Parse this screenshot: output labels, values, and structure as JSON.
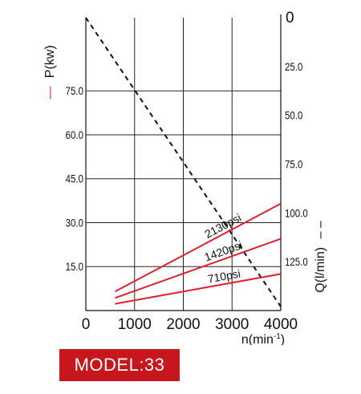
{
  "chart_data": {
    "type": "line",
    "x_axis": {
      "label": "n(min",
      "label_superscript": "-1",
      "label_close": ")",
      "range": [
        0,
        4000
      ],
      "ticks": [
        "0",
        "1000",
        "2000",
        "3000",
        "4000"
      ]
    },
    "y_left": {
      "label": "P(kw)",
      "legend_marker": "—",
      "range": [
        0,
        100
      ],
      "ticks": [
        "15.0",
        "30.0",
        "45.0",
        "60.0",
        "75.0"
      ]
    },
    "y_right": {
      "label": "Q(l/min)",
      "legend_marker": "– –",
      "range_top_to_bottom": [
        0,
        150
      ],
      "ticks": [
        "0",
        "25.0",
        "50.0",
        "75.0",
        "100.0",
        "125.0"
      ]
    },
    "grid": true,
    "power_series": [
      {
        "name": "2130psi",
        "x": [
          600,
          4000
        ],
        "y": [
          6.5,
          36.5
        ]
      },
      {
        "name": "1420psi",
        "x": [
          600,
          4000
        ],
        "y": [
          4.3,
          24.5
        ]
      },
      {
        "name": "710psi",
        "x": [
          600,
          4000
        ],
        "y": [
          2.3,
          12.5
        ]
      }
    ],
    "flow_series": {
      "x": [
        0,
        4000
      ],
      "q": [
        0,
        148
      ]
    },
    "colors": {
      "power": "#e0202a",
      "flow": "#111111",
      "grid": "#222222",
      "badge": "#c8161d"
    }
  },
  "badge": {
    "text": "MODEL:33"
  }
}
